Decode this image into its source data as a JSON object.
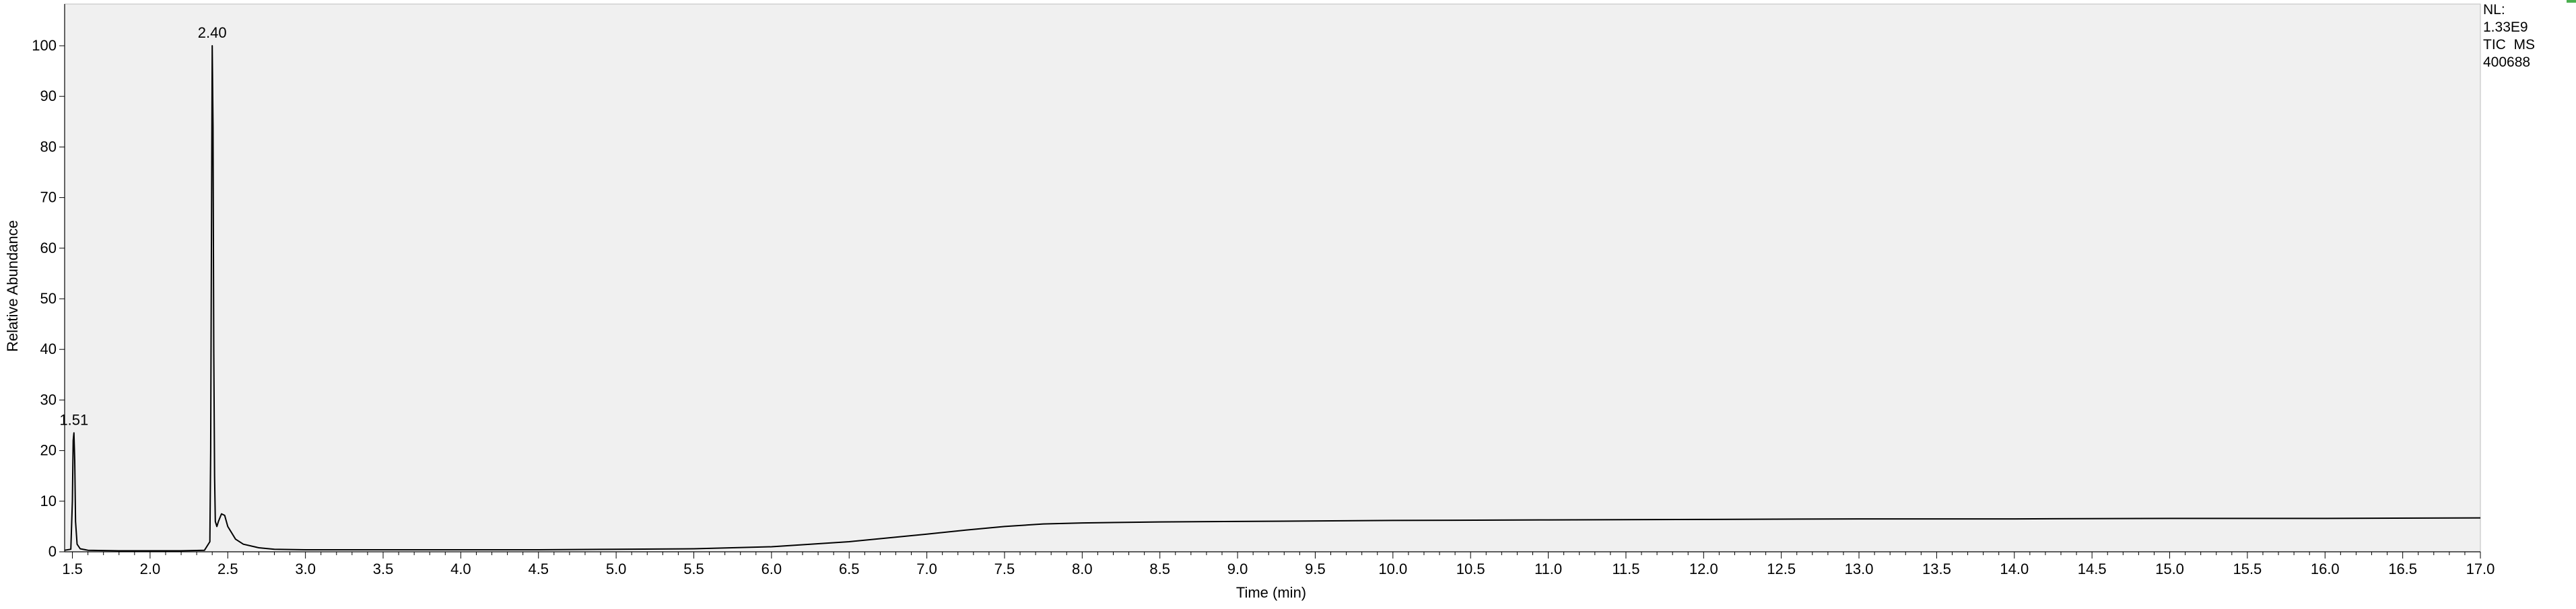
{
  "chart_data": {
    "type": "line",
    "title": "",
    "xlabel": "Time (min)",
    "ylabel": "Relative Abundance",
    "xlim": [
      1.45,
      17.0
    ],
    "ylim": [
      0,
      100
    ],
    "x_ticks": [
      1.5,
      2.0,
      2.5,
      3.0,
      3.5,
      4.0,
      4.5,
      5.0,
      5.5,
      6.0,
      6.5,
      7.0,
      7.5,
      8.0,
      8.5,
      9.0,
      9.5,
      10.0,
      10.5,
      11.0,
      11.5,
      12.0,
      12.5,
      13.0,
      13.5,
      14.0,
      14.5,
      15.0,
      15.5,
      16.0,
      16.5,
      17.0
    ],
    "x_tick_labels": [
      "1.5",
      "2.0",
      "2.5",
      "3.0",
      "3.5",
      "4.0",
      "4.5",
      "5.0",
      "5.5",
      "6.0",
      "6.5",
      "7.0",
      "7.5",
      "8.0",
      "8.5",
      "9.0",
      "9.5",
      "10.0",
      "10.5",
      "11.0",
      "11.5",
      "12.0",
      "12.5",
      "13.0",
      "13.5",
      "14.0",
      "14.5",
      "15.0",
      "15.5",
      "16.0",
      "16.5",
      "17.0"
    ],
    "y_ticks": [
      0,
      10,
      20,
      30,
      40,
      50,
      60,
      70,
      80,
      90,
      100
    ],
    "y_tick_labels": [
      "0",
      "10",
      "20",
      "30",
      "40",
      "50",
      "60",
      "70",
      "80",
      "90",
      "100"
    ],
    "grid": false,
    "series": [
      {
        "x": [
          1.45,
          1.49,
          1.5,
          1.505,
          1.51,
          1.515,
          1.52,
          1.53,
          1.55,
          1.6,
          1.8,
          2.0,
          2.2,
          2.35,
          2.385,
          2.39,
          2.395,
          2.4,
          2.405,
          2.41,
          2.415,
          2.42,
          2.43,
          2.44,
          2.46,
          2.48,
          2.5,
          2.55,
          2.6,
          2.7,
          2.8,
          3.0,
          3.5,
          4.0,
          4.5,
          5.0,
          5.5,
          6.0,
          6.5,
          7.0,
          7.25,
          7.5,
          7.75,
          8.0,
          8.5,
          9.0,
          10.0,
          11.0,
          12.0,
          13.0,
          14.0,
          15.0,
          16.0,
          17.0
        ],
        "y": [
          0.3,
          0.5,
          10,
          22,
          23.5,
          18,
          6,
          1.5,
          0.6,
          0.3,
          0.2,
          0.2,
          0.2,
          0.3,
          2,
          20,
          60,
          100,
          84,
          40,
          15,
          6,
          5,
          6,
          7.5,
          7.2,
          5,
          2.5,
          1.5,
          0.8,
          0.5,
          0.4,
          0.4,
          0.4,
          0.4,
          0.5,
          0.6,
          1.0,
          2.0,
          3.5,
          4.3,
          5.0,
          5.5,
          5.7,
          5.9,
          6.0,
          6.2,
          6.3,
          6.4,
          6.5,
          6.5,
          6.6,
          6.6,
          6.7
        ]
      }
    ],
    "annotations": [
      {
        "text": "2.40",
        "x": 2.4,
        "y": 100
      },
      {
        "text": "1.51",
        "x": 1.51,
        "y": 23.5
      }
    ]
  },
  "info": {
    "nl_label": "NL:",
    "nl_value": "1.33E9",
    "trace": "TIC  MS",
    "sample": "400688"
  }
}
